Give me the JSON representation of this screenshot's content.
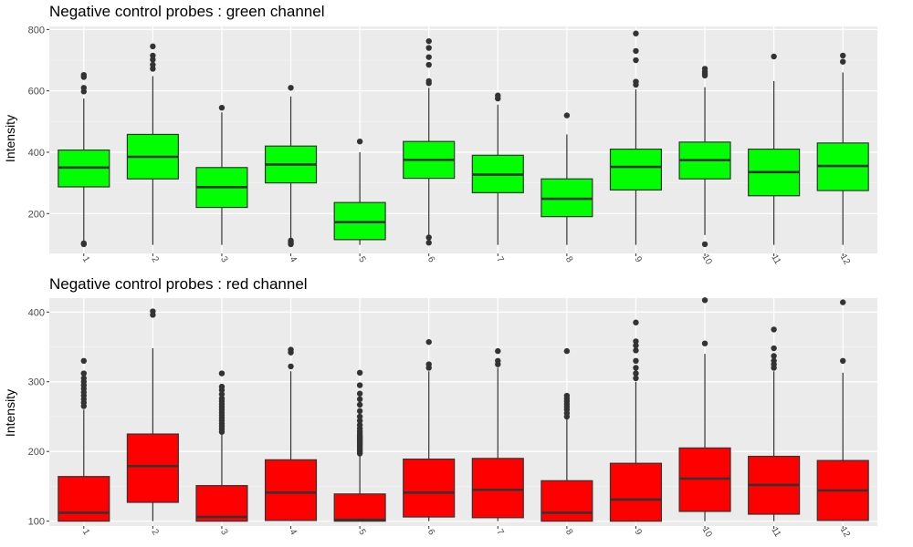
{
  "chart_data": [
    {
      "type": "box",
      "title": "Negative control probes : green channel",
      "ylabel": "Intensity",
      "xlabel": "",
      "ylim": [
        70,
        810
      ],
      "yticks": [
        200,
        400,
        600,
        800
      ],
      "fill_color": "#00ff00",
      "categories": [
        "1",
        "2",
        "3",
        "4",
        "5",
        "6",
        "7",
        "8",
        "9",
        "10",
        "11",
        "12"
      ],
      "boxes": [
        {
          "q1": 287,
          "median": 350,
          "q3": 407,
          "whisker_low": 98,
          "whisker_high": 575,
          "outliers": [
            100,
            103,
            598,
            610,
            645,
            652
          ]
        },
        {
          "q1": 313,
          "median": 385,
          "q3": 458,
          "whisker_low": 98,
          "whisker_high": 648,
          "outliers": [
            672,
            685,
            702,
            715,
            745
          ]
        },
        {
          "q1": 220,
          "median": 286,
          "q3": 350,
          "whisker_low": 98,
          "whisker_high": 530,
          "outliers": [
            545
          ]
        },
        {
          "q1": 300,
          "median": 360,
          "q3": 420,
          "whisker_low": 115,
          "whisker_high": 582,
          "outliers": [
            100,
            103,
            108,
            112,
            610
          ]
        },
        {
          "q1": 115,
          "median": 172,
          "q3": 236,
          "whisker_low": 98,
          "whisker_high": 400,
          "outliers": [
            435
          ]
        },
        {
          "q1": 315,
          "median": 375,
          "q3": 435,
          "whisker_low": 125,
          "whisker_high": 610,
          "outliers": [
            105,
            122,
            625,
            632,
            685,
            710,
            740,
            762
          ]
        },
        {
          "q1": 268,
          "median": 327,
          "q3": 390,
          "whisker_low": 98,
          "whisker_high": 555,
          "outliers": [
            575,
            585
          ]
        },
        {
          "q1": 190,
          "median": 248,
          "q3": 313,
          "whisker_low": 98,
          "whisker_high": 458,
          "outliers": [
            520
          ]
        },
        {
          "q1": 277,
          "median": 352,
          "q3": 410,
          "whisker_low": 98,
          "whisker_high": 605,
          "outliers": [
            620,
            630,
            700,
            730,
            787
          ]
        },
        {
          "q1": 313,
          "median": 374,
          "q3": 433,
          "whisker_low": 130,
          "whisker_high": 612,
          "outliers": [
            100,
            650,
            655,
            662,
            672
          ]
        },
        {
          "q1": 258,
          "median": 335,
          "q3": 410,
          "whisker_low": 98,
          "whisker_high": 632,
          "outliers": [
            712
          ]
        },
        {
          "q1": 275,
          "median": 355,
          "q3": 430,
          "whisker_low": 98,
          "whisker_high": 660,
          "outliers": [
            695,
            715
          ]
        }
      ]
    },
    {
      "type": "box",
      "title": "Negative control probes : red channel",
      "ylabel": "Intensity",
      "xlabel": "",
      "ylim": [
        93,
        420
      ],
      "yticks": [
        100,
        200,
        300,
        400
      ],
      "fill_color": "#ff0000",
      "categories": [
        "1",
        "2",
        "3",
        "4",
        "5",
        "6",
        "7",
        "8",
        "9",
        "10",
        "11",
        "12"
      ],
      "boxes": [
        {
          "q1": 100,
          "median": 112,
          "q3": 164,
          "whisker_low": 100,
          "whisker_high": 260,
          "outliers": [
            265,
            270,
            275,
            280,
            285,
            290,
            295,
            300,
            305,
            312,
            330
          ]
        },
        {
          "q1": 127,
          "median": 179,
          "q3": 225,
          "whisker_low": 100,
          "whisker_high": 348,
          "outliers": [
            396,
            401
          ]
        },
        {
          "q1": 100,
          "median": 106,
          "q3": 151,
          "whisker_low": 100,
          "whisker_high": 225,
          "outliers": [
            228,
            232,
            236,
            240,
            244,
            248,
            252,
            256,
            260,
            264,
            268,
            272,
            276,
            282,
            288,
            293,
            312
          ]
        },
        {
          "q1": 101,
          "median": 141,
          "q3": 188,
          "whisker_low": 100,
          "whisker_high": 315,
          "outliers": [
            322,
            342,
            346
          ]
        },
        {
          "q1": 100,
          "median": 102,
          "q3": 139,
          "whisker_low": 100,
          "whisker_high": 195,
          "outliers": [
            197,
            199,
            201,
            203,
            205,
            207,
            209,
            211,
            213,
            215,
            217,
            219,
            221,
            223,
            226,
            229,
            233,
            238,
            244,
            250,
            258,
            267,
            275,
            283,
            295,
            313
          ]
        },
        {
          "q1": 106,
          "median": 141,
          "q3": 189,
          "whisker_low": 100,
          "whisker_high": 315,
          "outliers": [
            320,
            325,
            357
          ]
        },
        {
          "q1": 105,
          "median": 145,
          "q3": 190,
          "whisker_low": 100,
          "whisker_high": 320,
          "outliers": [
            325,
            330,
            344
          ]
        },
        {
          "q1": 100,
          "median": 112,
          "q3": 158,
          "whisker_low": 100,
          "whisker_high": 247,
          "outliers": [
            250,
            255,
            260,
            264,
            268,
            272,
            276,
            280,
            344
          ]
        },
        {
          "q1": 100,
          "median": 131,
          "q3": 183,
          "whisker_low": 100,
          "whisker_high": 300,
          "outliers": [
            305,
            312,
            320,
            330,
            345,
            352,
            358,
            385
          ]
        },
        {
          "q1": 114,
          "median": 161,
          "q3": 205,
          "whisker_low": 100,
          "whisker_high": 340,
          "outliers": [
            355,
            417
          ]
        },
        {
          "q1": 110,
          "median": 152,
          "q3": 193,
          "whisker_low": 100,
          "whisker_high": 315,
          "outliers": [
            320,
            325,
            330,
            337,
            348,
            375
          ]
        },
        {
          "q1": 101,
          "median": 144,
          "q3": 187,
          "whisker_low": 100,
          "whisker_high": 313,
          "outliers": [
            330,
            414
          ]
        }
      ]
    }
  ]
}
